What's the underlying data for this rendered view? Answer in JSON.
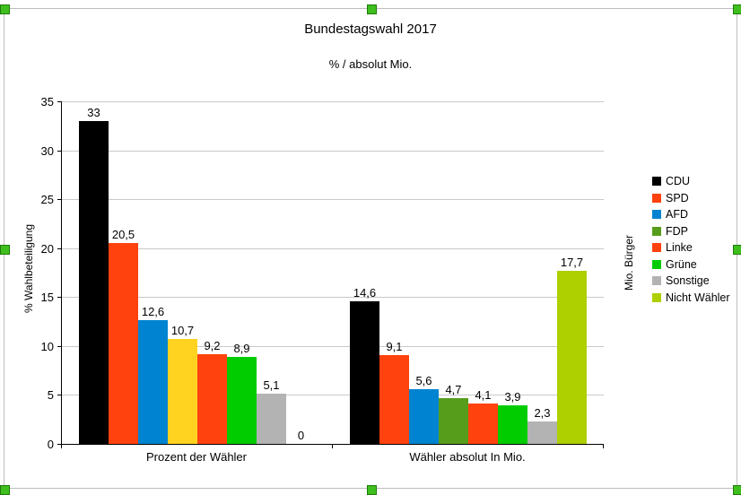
{
  "chart_data": {
    "type": "bar",
    "title": "Bundestagswahl 2017",
    "subtitle": "% / absolut Mio.",
    "ylabel": "% Wahlbeteiligung",
    "ylabel_right": "Mio. Bürger",
    "ylim": [
      0,
      35
    ],
    "yticks": [
      0,
      5,
      10,
      15,
      20,
      25,
      30,
      35
    ],
    "grid": "horizontal",
    "legend_position": "right",
    "categories": [
      "Prozent der Wähler",
      "Wähler absolut In Mio."
    ],
    "series": [
      {
        "name": "CDU",
        "legend_color": "#000000",
        "bar_colors": [
          "#000000",
          "#000000"
        ],
        "values": [
          33,
          14.6
        ],
        "value_labels": [
          "33",
          "14,6"
        ]
      },
      {
        "name": "SPD",
        "legend_color": "#FF420E",
        "bar_colors": [
          "#FF420E",
          "#FF420E"
        ],
        "values": [
          20.5,
          9.1
        ],
        "value_labels": [
          "20,5",
          "9,1"
        ]
      },
      {
        "name": "AFD",
        "legend_color": "#0084D1",
        "bar_colors": [
          "#0084D1",
          "#0084D1"
        ],
        "values": [
          12.6,
          5.6
        ],
        "value_labels": [
          "12,6",
          "5,6"
        ]
      },
      {
        "name": "FDP",
        "legend_color": "#579D1C",
        "bar_colors": [
          "#FFD320",
          "#579D1C"
        ],
        "values": [
          10.7,
          4.7
        ],
        "value_labels": [
          "10,7",
          "4,7"
        ]
      },
      {
        "name": "Linke",
        "legend_color": "#FF420E",
        "bar_colors": [
          "#FF420E",
          "#FF420E"
        ],
        "values": [
          9.2,
          4.1
        ],
        "value_labels": [
          "9,2",
          "4,1"
        ]
      },
      {
        "name": "Grüne",
        "legend_color": "#00CC00",
        "bar_colors": [
          "#00CC00",
          "#00CC00"
        ],
        "values": [
          8.9,
          3.9
        ],
        "value_labels": [
          "8,9",
          "3,9"
        ]
      },
      {
        "name": "Sonstige",
        "legend_color": "#B3B3B3",
        "bar_colors": [
          "#B3B3B3",
          "#B3B3B3"
        ],
        "values": [
          5.1,
          2.3
        ],
        "value_labels": [
          "5,1",
          "2,3"
        ]
      },
      {
        "name": "Nicht Wähler",
        "legend_color": "#AECF00",
        "bar_colors": [
          "#AECF00",
          "#AECF00"
        ],
        "values": [
          0,
          17.7
        ],
        "value_labels": [
          "0",
          "17,7"
        ]
      }
    ]
  }
}
